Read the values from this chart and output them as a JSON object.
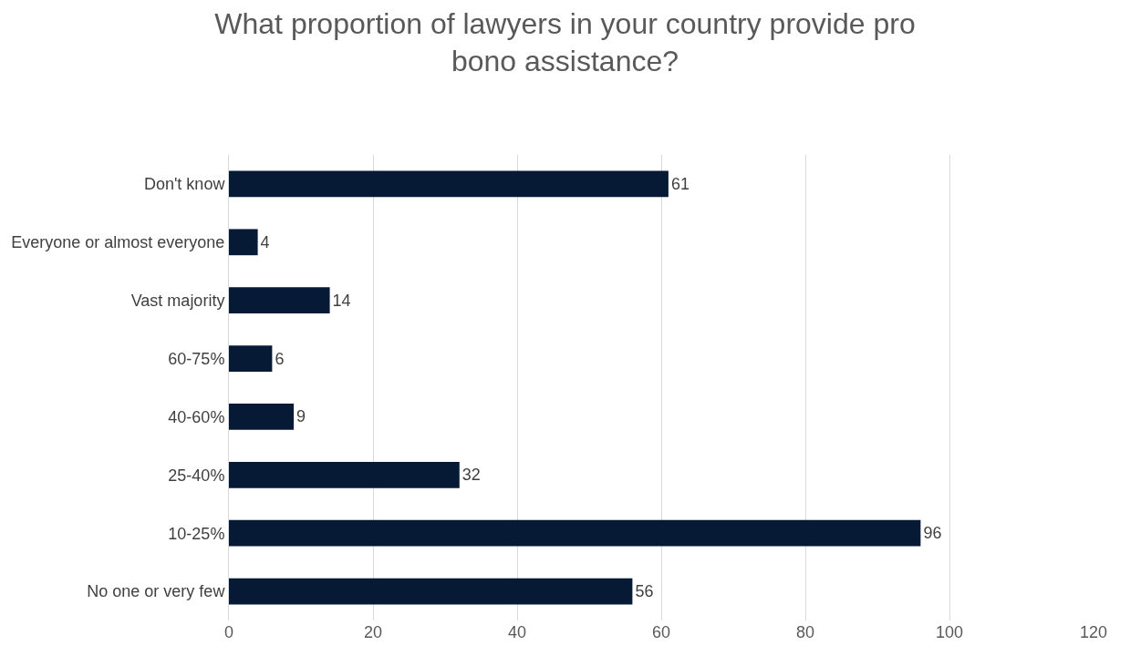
{
  "chart_data": {
    "type": "bar",
    "orientation": "horizontal",
    "title": "What proportion of lawyers in your country provide pro bono assistance?",
    "categories": [
      "Don't know",
      "Everyone or almost everyone",
      "Vast majority",
      "60-75%",
      "40-60%",
      "25-40%",
      "10-25%",
      "No one or very few"
    ],
    "values": [
      61,
      4,
      14,
      6,
      9,
      32,
      96,
      56
    ],
    "color": "#061a36",
    "xlim": [
      0,
      120
    ],
    "xticks": [
      0,
      20,
      40,
      60,
      80,
      100,
      120
    ],
    "grid": "x",
    "data_labels": true,
    "legend": false
  }
}
